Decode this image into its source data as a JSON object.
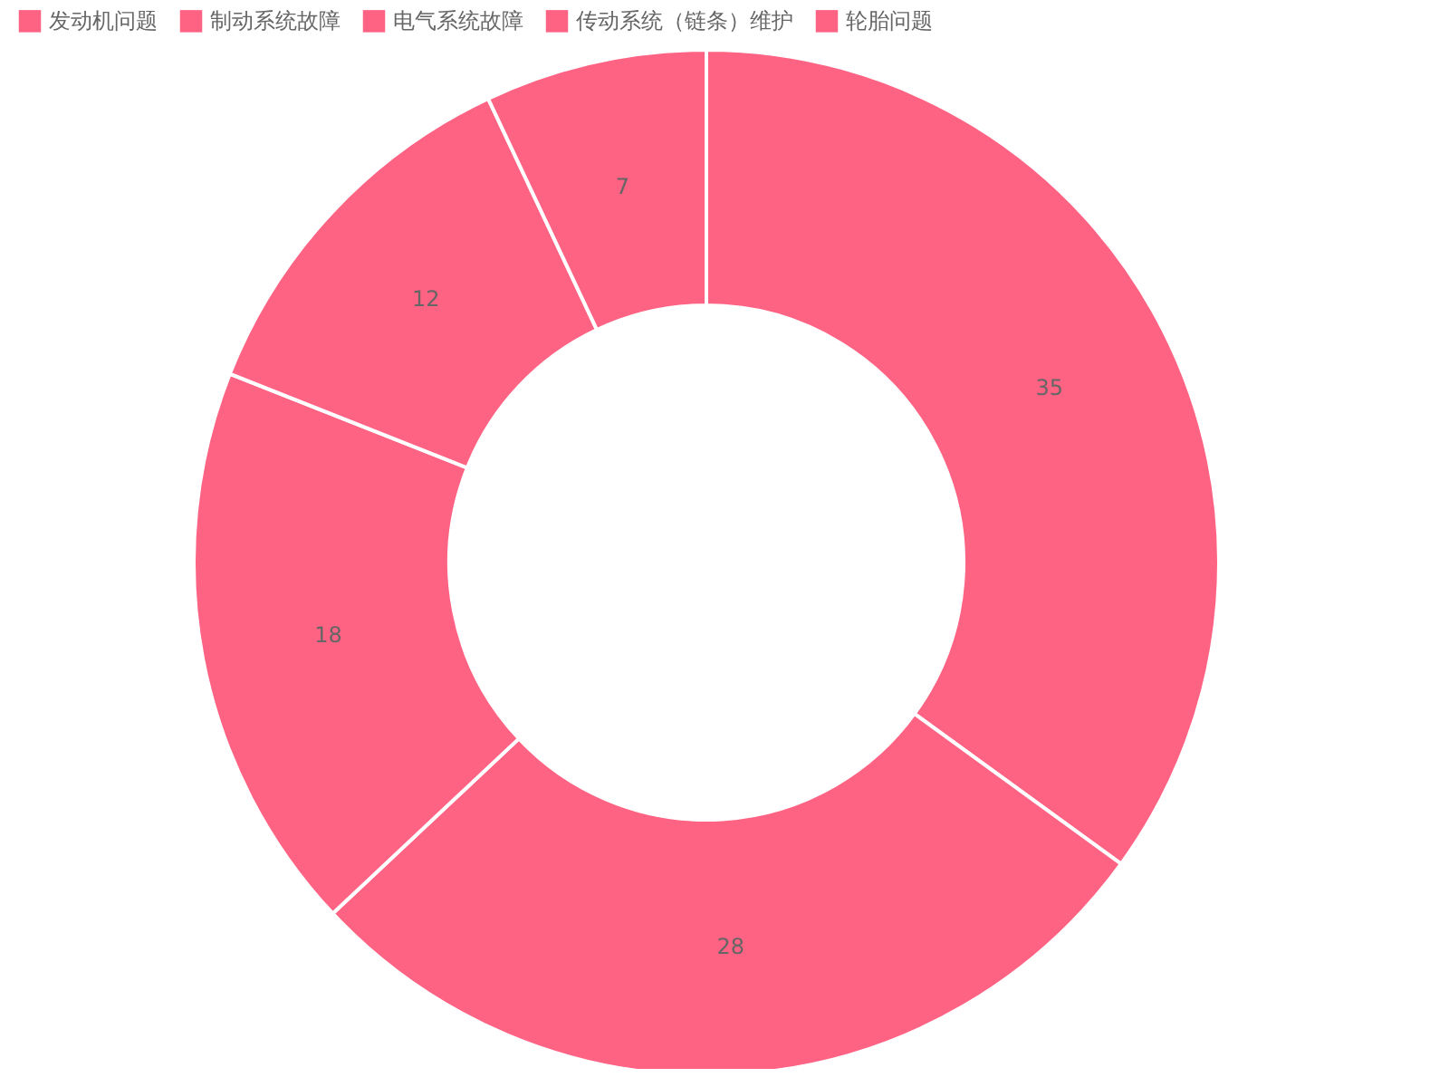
{
  "chart_data": {
    "type": "donut",
    "categories": [
      "发动机问题",
      "制动系统故障",
      "电气系统故障",
      "传动系统（链条）维护",
      "轮胎问题"
    ],
    "values": [
      35,
      28,
      18,
      12,
      7
    ],
    "colors": [
      "#ff6384",
      "#ff6384",
      "#ff6384",
      "#ff6384",
      "#ff6384"
    ],
    "data_labels": true,
    "legend": "top"
  }
}
